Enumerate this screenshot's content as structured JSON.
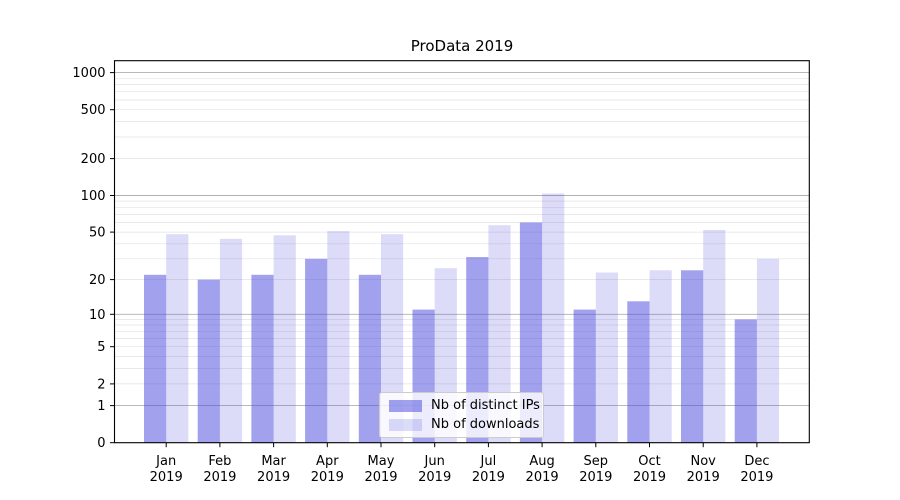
{
  "chart_data": {
    "type": "bar",
    "title": "ProData 2019",
    "categories": [
      "Jan",
      "Feb",
      "Mar",
      "Apr",
      "May",
      "Jun",
      "Jul",
      "Aug",
      "Sep",
      "Oct",
      "Nov",
      "Dec"
    ],
    "category_year": "2019",
    "series": [
      {
        "name": "Nb of distinct IPs",
        "color": "rgba(68,68,221,0.50)",
        "values": [
          22,
          20,
          22,
          30,
          22,
          11,
          31,
          60,
          11,
          13,
          24,
          9
        ]
      },
      {
        "name": "Nb of downloads",
        "color": "rgba(68,68,221,0.19)",
        "values": [
          48,
          44,
          47,
          51,
          48,
          25,
          57,
          104,
          23,
          24,
          52,
          30
        ]
      }
    ],
    "yscale": "log1p",
    "y_ticks": [
      0,
      1,
      2,
      5,
      10,
      20,
      50,
      100,
      200,
      500,
      1000
    ],
    "ylim": [
      0,
      1250
    ],
    "grid": "both",
    "legend_position": "lower-center",
    "colors": {
      "grid_major": "#b0b0b0",
      "grid_minor": "#e2e2e2",
      "spine": "#000000",
      "text": "#000000"
    }
  }
}
